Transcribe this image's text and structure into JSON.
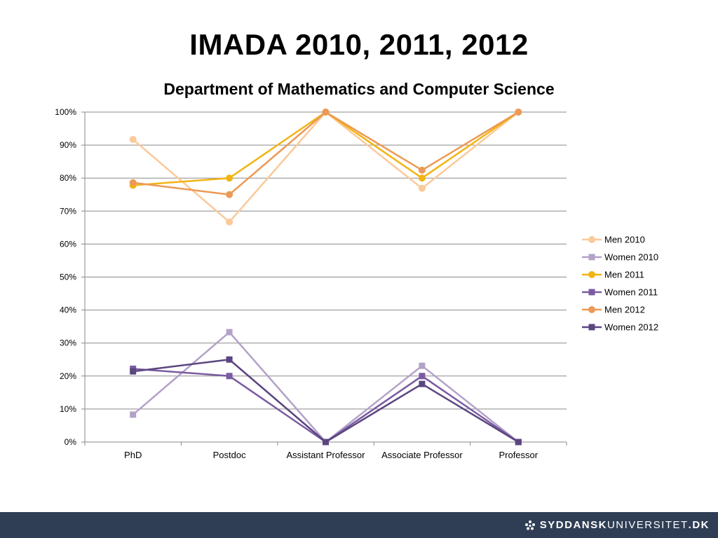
{
  "slide": {
    "title": "IMADA 2010, 2011, 2012"
  },
  "footer": {
    "brand_bold": "SYDDANSK",
    "brand_light": "UNIVERSITET",
    "brand_suffix": ".DK",
    "logo_icon": "sdu-crown-icon",
    "background_color": "#2f3e55"
  },
  "chart_data": {
    "type": "line",
    "title": "Department of Mathematics and Computer Science",
    "xlabel": "",
    "ylabel": "",
    "categories": [
      "PhD",
      "Postdoc",
      "Assistant Professor",
      "Associate Professor",
      "Professor"
    ],
    "ylim": [
      0,
      100
    ],
    "yticks": [
      "0%",
      "10%",
      "20%",
      "30%",
      "40%",
      "50%",
      "60%",
      "70%",
      "80%",
      "90%",
      "100%"
    ],
    "grid": true,
    "legend_position": "right",
    "series": [
      {
        "name": "Men 2010",
        "color": "#fbc99a",
        "marker": "circle",
        "values": [
          91.7,
          66.7,
          100,
          76.9,
          100
        ]
      },
      {
        "name": "Women 2010",
        "color": "#b3a2c8",
        "marker": "square",
        "values": [
          8.3,
          33.3,
          0,
          23.1,
          0
        ]
      },
      {
        "name": "Men 2011",
        "color": "#f1b414",
        "marker": "circle",
        "values": [
          77.8,
          80,
          100,
          80,
          100
        ]
      },
      {
        "name": "Women 2011",
        "color": "#7b5ba1",
        "marker": "square",
        "values": [
          22.2,
          20,
          0,
          20,
          0
        ]
      },
      {
        "name": "Men 2012",
        "color": "#ec9a55",
        "marker": "circle",
        "values": [
          78.6,
          75,
          100,
          82.4,
          100
        ]
      },
      {
        "name": "Women 2012",
        "color": "#5b4680",
        "marker": "square",
        "values": [
          21.4,
          25,
          0,
          17.6,
          0
        ]
      }
    ]
  }
}
